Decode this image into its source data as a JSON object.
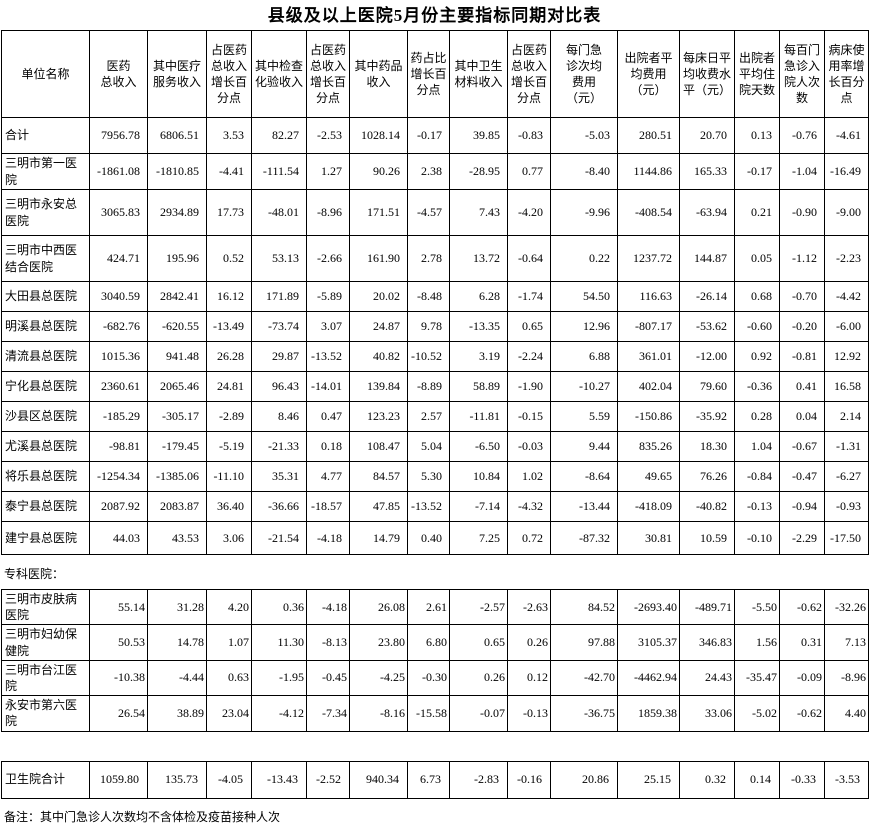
{
  "title": "县级及以上医院5月份主要指标同期对比表",
  "table": {
    "unit_column_header": "单位名称",
    "columns": [
      "医药\n总收入",
      "其中医疗\n服务收入",
      "占医药\n总收入\n增长百\n分点",
      "其中检查\n化验收入",
      "占医药\n总收入\n增长百\n分点",
      "其中药品\n收入",
      "药占比\n增长百\n分点",
      "其中卫生\n材料收入",
      "占医药\n总收入\n增长百\n分点",
      "每门急\n诊次均\n费用\n（元）",
      "出院者平\n均费用\n（元）",
      "每床日平\n均收费水\n平（元）",
      "出院者\n平均住\n院天数",
      "每百门\n急诊入\n院人次\n数",
      "病床使\n用率增\n长百分\n点"
    ],
    "sections": [
      {
        "rows": [
          {
            "name": "合计",
            "values": [
              "7956.78",
              "6806.51",
              "3.53",
              "82.27",
              "-2.53",
              "1028.14",
              "-0.17",
              "39.85",
              "-0.83",
              "-5.03",
              "280.51",
              "20.70",
              "0.13",
              "-0.76",
              "-4.61"
            ]
          },
          {
            "name": "三明市第一医院",
            "values": [
              "-1861.08",
              "-1810.85",
              "-4.41",
              "-111.54",
              "1.27",
              "90.26",
              "2.38",
              "-28.95",
              "0.77",
              "-8.40",
              "1144.86",
              "165.33",
              "-0.17",
              "-1.04",
              "-16.49"
            ]
          },
          {
            "name": "三明市永安总医院",
            "values": [
              "3065.83",
              "2934.89",
              "17.73",
              "-48.01",
              "-8.96",
              "171.51",
              "-4.57",
              "7.43",
              "-4.20",
              "-9.96",
              "-408.54",
              "-63.94",
              "0.21",
              "-0.90",
              "-9.00"
            ]
          },
          {
            "name": "三明市中西医结合医院",
            "values": [
              "424.71",
              "195.96",
              "0.52",
              "53.13",
              "-2.66",
              "161.90",
              "2.78",
              "13.72",
              "-0.64",
              "0.22",
              "1237.72",
              "144.87",
              "0.05",
              "-1.12",
              "-2.23"
            ]
          },
          {
            "name": "大田县总医院",
            "values": [
              "3040.59",
              "2842.41",
              "16.12",
              "171.89",
              "-5.89",
              "20.02",
              "-8.48",
              "6.28",
              "-1.74",
              "54.50",
              "116.63",
              "-26.14",
              "0.68",
              "-0.70",
              "-4.42"
            ]
          },
          {
            "name": "明溪县总医院",
            "values": [
              "-682.76",
              "-620.55",
              "-13.49",
              "-73.74",
              "3.07",
              "24.87",
              "9.78",
              "-13.35",
              "0.65",
              "12.96",
              "-807.17",
              "-53.62",
              "-0.60",
              "-0.20",
              "-6.00"
            ]
          },
          {
            "name": "清流县总医院",
            "values": [
              "1015.36",
              "941.48",
              "26.28",
              "29.87",
              "-13.52",
              "40.82",
              "-10.52",
              "3.19",
              "-2.24",
              "6.88",
              "361.01",
              "-12.00",
              "0.92",
              "-0.81",
              "12.92"
            ]
          },
          {
            "name": "宁化县总医院",
            "values": [
              "2360.61",
              "2065.46",
              "24.81",
              "96.43",
              "-14.01",
              "139.84",
              "-8.89",
              "58.89",
              "-1.90",
              "-10.27",
              "402.04",
              "79.60",
              "-0.36",
              "0.41",
              "16.58"
            ]
          },
          {
            "name": "沙县区总医院",
            "values": [
              "-185.29",
              "-305.17",
              "-2.89",
              "8.46",
              "0.47",
              "123.23",
              "2.57",
              "-11.81",
              "-0.15",
              "5.59",
              "-150.86",
              "-35.92",
              "0.28",
              "0.04",
              "2.14"
            ]
          },
          {
            "name": "尤溪县总医院",
            "values": [
              "-98.81",
              "-179.45",
              "-5.19",
              "-21.33",
              "0.18",
              "108.47",
              "5.04",
              "-6.50",
              "-0.03",
              "9.44",
              "835.26",
              "18.30",
              "1.04",
              "-0.67",
              "-1.31"
            ]
          },
          {
            "name": "将乐县总医院",
            "values": [
              "-1254.34",
              "-1385.06",
              "-11.10",
              "35.31",
              "4.77",
              "84.57",
              "5.30",
              "10.84",
              "1.02",
              "-8.64",
              "49.65",
              "76.26",
              "-0.84",
              "-0.47",
              "-6.27"
            ]
          },
          {
            "name": "泰宁县总医院",
            "values": [
              "2087.92",
              "2083.87",
              "36.40",
              "-36.66",
              "-18.57",
              "47.85",
              "-13.52",
              "-7.14",
              "-4.32",
              "-13.44",
              "-418.09",
              "-40.82",
              "-0.13",
              "-0.94",
              "-0.93"
            ]
          },
          {
            "name": "建宁县总医院",
            "values": [
              "44.03",
              "43.53",
              "3.06",
              "-21.54",
              "-4.18",
              "14.79",
              "0.40",
              "7.25",
              "0.72",
              "-87.32",
              "30.81",
              "10.59",
              "-0.10",
              "-2.29",
              "-17.50"
            ]
          }
        ]
      },
      {
        "label": "专科医院：",
        "rows": [
          {
            "name": "三明市皮肤病医院",
            "values": [
              "55.14",
              "31.28",
              "4.20",
              "0.36",
              "-4.18",
              "26.08",
              "2.61",
              "-2.57",
              "-2.63",
              "84.52",
              "-2693.40",
              "-489.71",
              "-5.50",
              "-0.62",
              "-32.26"
            ]
          },
          {
            "name": "三明市妇幼保健院",
            "values": [
              "50.53",
              "14.78",
              "1.07",
              "11.30",
              "-8.13",
              "23.80",
              "6.80",
              "0.65",
              "0.26",
              "97.88",
              "3105.37",
              "346.83",
              "1.56",
              "0.31",
              "7.13"
            ]
          },
          {
            "name": "三明市台江医院",
            "values": [
              "-10.38",
              "-4.44",
              "0.63",
              "-1.95",
              "-0.45",
              "-4.25",
              "-0.30",
              "0.26",
              "0.12",
              "-42.70",
              "-4462.94",
              "24.43",
              "-35.47",
              "-0.09",
              "-8.96"
            ]
          },
          {
            "name": "永安市第六医院",
            "values": [
              "26.54",
              "38.89",
              "23.04",
              "-4.12",
              "-7.34",
              "-8.16",
              "-15.58",
              "-0.07",
              "-0.13",
              "-36.75",
              "1859.38",
              "33.06",
              "-5.02",
              "-0.62",
              "4.40"
            ]
          }
        ]
      },
      {
        "rows": [
          {
            "name": "卫生院合计",
            "values": [
              "1059.80",
              "135.73",
              "-4.05",
              "-13.43",
              "-2.52",
              "940.34",
              "6.73",
              "-2.83",
              "-0.16",
              "20.86",
              "25.15",
              "0.32",
              "0.14",
              "-0.33",
              "-3.53"
            ]
          }
        ]
      }
    ],
    "note": "备注：其中门急诊人次数均不含体检及疫苗接种人次"
  }
}
